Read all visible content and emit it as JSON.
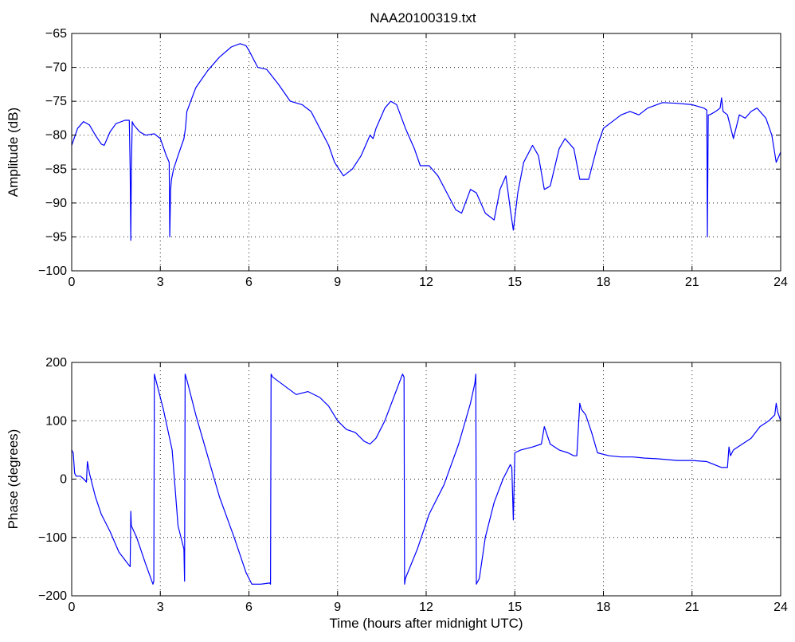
{
  "figure": {
    "title": "NAA20100319.txt"
  },
  "chart_data": [
    {
      "type": "line",
      "title": "NAA20100319.txt",
      "xlabel": "",
      "ylabel": "Amplitude (dB)",
      "xlim": [
        0,
        24
      ],
      "ylim": [
        -100,
        -65
      ],
      "xticks": [
        0,
        3,
        6,
        9,
        12,
        15,
        18,
        21,
        24
      ],
      "yticks": [
        -100,
        -95,
        -90,
        -85,
        -80,
        -75,
        -70,
        -65
      ],
      "grid": true,
      "color": "#0000ff",
      "series": [
        {
          "x": [
            0,
            0.2,
            0.4,
            0.6,
            0.8,
            1.0,
            1.1,
            1.3,
            1.5,
            1.8,
            1.95,
            1.98,
            2.0,
            2.02,
            2.05,
            2.1,
            2.3,
            2.5,
            2.8,
            3.0,
            3.2,
            3.3,
            3.32,
            3.35,
            3.38,
            3.45,
            3.6,
            3.8,
            3.85,
            3.9,
            4.2,
            4.6,
            5.0,
            5.4,
            5.7,
            5.9,
            6.0,
            6.3,
            6.6,
            7.0,
            7.4,
            7.8,
            8.1,
            8.4,
            8.7,
            8.9,
            9.2,
            9.5,
            9.8,
            10.0,
            10.1,
            10.2,
            10.3,
            10.6,
            10.8,
            11.0,
            11.3,
            11.6,
            11.8,
            12.1,
            12.4,
            12.7,
            13.0,
            13.2,
            13.5,
            13.7,
            14.0,
            14.3,
            14.5,
            14.7,
            14.85,
            14.95,
            15.1,
            15.3,
            15.6,
            15.8,
            16.0,
            16.2,
            16.5,
            16.7,
            17.0,
            17.2,
            17.5,
            17.8,
            18.0,
            18.3,
            18.6,
            18.9,
            19.2,
            19.5,
            20.0,
            20.5,
            21.0,
            21.4,
            21.5,
            21.52,
            21.55,
            21.6,
            21.8,
            21.95,
            22.0,
            22.05,
            22.2,
            22.4,
            22.6,
            22.8,
            23.0,
            23.2,
            23.5,
            23.7,
            23.85,
            24.0
          ],
          "y": [
            -81.5,
            -79.0,
            -78.0,
            -78.5,
            -80.0,
            -81.3,
            -81.5,
            -79.5,
            -78.3,
            -77.8,
            -77.8,
            -85.0,
            -95.5,
            -85.0,
            -78.0,
            -78.5,
            -79.5,
            -80.0,
            -79.8,
            -80.5,
            -83.0,
            -84.0,
            -95.0,
            -88.0,
            -86.5,
            -85.0,
            -83.0,
            -80.5,
            -79.0,
            -76.5,
            -73.0,
            -70.5,
            -68.5,
            -67.0,
            -66.5,
            -66.8,
            -67.5,
            -70.0,
            -70.3,
            -72.5,
            -75.0,
            -75.5,
            -76.5,
            -79.0,
            -81.5,
            -84.0,
            -86.0,
            -85.0,
            -83.0,
            -81.0,
            -80.0,
            -80.5,
            -79.0,
            -76.0,
            -75.0,
            -75.5,
            -79.0,
            -82.0,
            -84.5,
            -84.5,
            -86.0,
            -88.5,
            -91.0,
            -91.5,
            -88.0,
            -88.5,
            -91.5,
            -92.5,
            -88.0,
            -86.0,
            -91.0,
            -94.0,
            -88.5,
            -84.0,
            -81.5,
            -83.0,
            -88.0,
            -87.5,
            -82.0,
            -80.5,
            -82.0,
            -86.5,
            -86.5,
            -81.5,
            -79.0,
            -78.0,
            -77.0,
            -76.5,
            -77.0,
            -76.0,
            -75.2,
            -75.3,
            -75.5,
            -76.0,
            -76.3,
            -95.0,
            -77.0,
            -77.0,
            -76.5,
            -76.0,
            -74.5,
            -76.5,
            -77.0,
            -80.5,
            -77.0,
            -77.5,
            -76.5,
            -76.0,
            -77.5,
            -80.0,
            -84.0,
            -82.5
          ]
        }
      ]
    },
    {
      "type": "line",
      "title": "",
      "xlabel": "Time (hours after midnight UTC)",
      "ylabel": "Phase (degrees)",
      "xlim": [
        0,
        24
      ],
      "ylim": [
        -200,
        200
      ],
      "xticks": [
        0,
        3,
        6,
        9,
        12,
        15,
        18,
        21,
        24
      ],
      "yticks": [
        -200,
        -100,
        0,
        100,
        200
      ],
      "grid": true,
      "color": "#0000ff",
      "series": [
        {
          "x": [
            0,
            0.05,
            0.1,
            0.15,
            0.3,
            0.45,
            0.5,
            0.53,
            0.55,
            0.6,
            0.8,
            1.0,
            1.3,
            1.6,
            1.9,
            1.98,
            2.0,
            2.02,
            2.2,
            2.5,
            2.75,
            2.78,
            2.8,
            2.9,
            3.1,
            3.4,
            3.6,
            3.8,
            3.82,
            3.84,
            3.9,
            4.2,
            4.6,
            5.0,
            5.5,
            5.9,
            6.1,
            6.4,
            6.7,
            6.73,
            6.75,
            6.8,
            7.2,
            7.6,
            8.0,
            8.4,
            8.7,
            9.0,
            9.3,
            9.6,
            9.9,
            10.1,
            10.3,
            10.6,
            10.9,
            11.2,
            11.25,
            11.27,
            11.3,
            11.7,
            12.1,
            12.6,
            13.1,
            13.5,
            13.65,
            13.68,
            13.7,
            13.8,
            14.0,
            14.3,
            14.6,
            14.85,
            14.9,
            14.95,
            15.0,
            15.2,
            15.6,
            15.9,
            16.0,
            16.2,
            16.5,
            16.8,
            17.0,
            17.1,
            17.2,
            17.25,
            17.4,
            17.6,
            17.8,
            18.2,
            18.6,
            19.0,
            19.4,
            19.8,
            20.5,
            21.0,
            21.5,
            22.0,
            22.2,
            22.25,
            22.3,
            22.4,
            22.7,
            23.0,
            23.3,
            23.6,
            23.8,
            23.85,
            23.9,
            24.0
          ],
          "y": [
            50,
            45,
            10,
            5,
            5,
            -2,
            -5,
            30,
            25,
            10,
            -30,
            -60,
            -90,
            -125,
            -145,
            -150,
            -55,
            -80,
            -100,
            -145,
            -180,
            -175,
            180,
            160,
            120,
            50,
            -80,
            -120,
            -175,
            180,
            170,
            110,
            40,
            -30,
            -100,
            -160,
            -180,
            -180,
            -178,
            -180,
            180,
            175,
            160,
            145,
            150,
            140,
            125,
            100,
            85,
            80,
            65,
            60,
            70,
            100,
            140,
            180,
            175,
            -180,
            -170,
            -120,
            -60,
            -10,
            60,
            130,
            165,
            180,
            -180,
            -170,
            -100,
            -40,
            0,
            25,
            20,
            -70,
            45,
            50,
            55,
            60,
            90,
            60,
            50,
            45,
            40,
            40,
            130,
            120,
            110,
            80,
            45,
            40,
            38,
            38,
            36,
            35,
            32,
            32,
            30,
            20,
            20,
            55,
            40,
            50,
            60,
            70,
            90,
            100,
            110,
            130,
            115,
            100
          ]
        }
      ]
    }
  ]
}
